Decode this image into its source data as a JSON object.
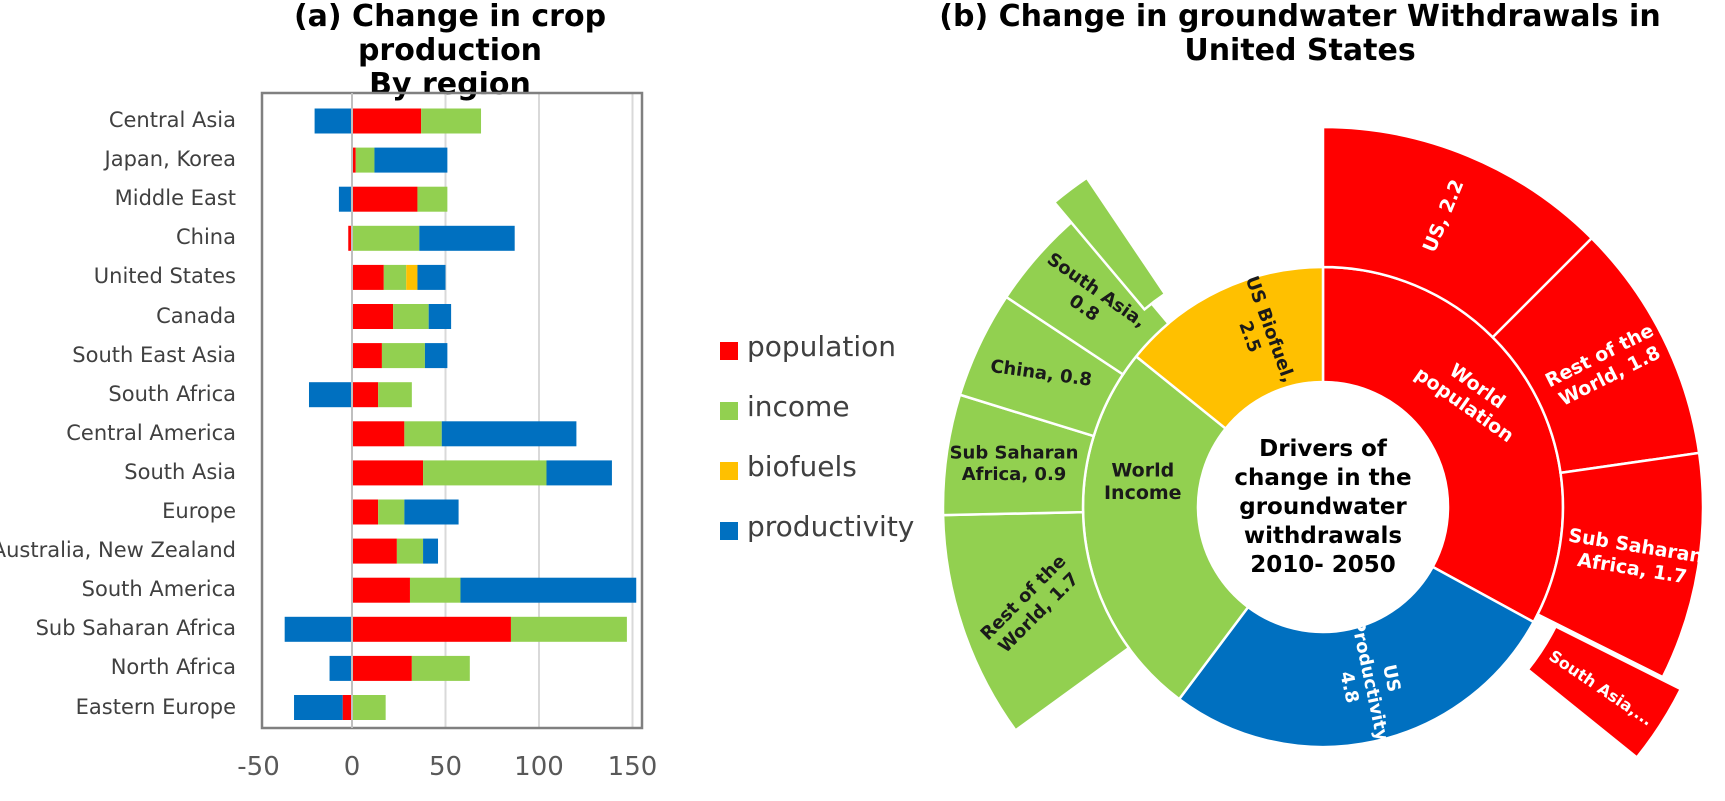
{
  "chart_data": [
    {
      "type": "bar",
      "orientation": "horizontal",
      "stacked": true,
      "title": "(a) Change in crop production",
      "subtitle": "By region",
      "categories": [
        "Central Asia",
        "Japan, Korea",
        "Middle East",
        "China",
        "United States",
        "Canada",
        "South East Asia",
        "South Africa",
        "Central America",
        "South Asia",
        "Europe",
        "Australia, New Zealand",
        "South America",
        "Sub Saharan Africa",
        "North Africa",
        "Eastern Europe"
      ],
      "series": [
        {
          "name": "population",
          "color": "#ff0000",
          "values": [
            37,
            2,
            35,
            -2,
            17,
            22,
            16,
            14,
            28,
            38,
            14,
            24,
            31,
            85,
            32,
            -5
          ]
        },
        {
          "name": "income",
          "color": "#92d050",
          "values": [
            32,
            10,
            16,
            36,
            12,
            19,
            23,
            18,
            20,
            66,
            14,
            14,
            27,
            62,
            31,
            18
          ]
        },
        {
          "name": "biofuels",
          "color": "#ffc000",
          "values": [
            0,
            0,
            0,
            0,
            6,
            0,
            0,
            0,
            0,
            0,
            0,
            0,
            0,
            0,
            0,
            0
          ]
        },
        {
          "name": "productivity",
          "color": "#0070c0",
          "values": [
            -20,
            39,
            -7,
            51,
            15,
            12,
            12,
            -23,
            72,
            35,
            29,
            8,
            94,
            -36,
            -12,
            -26
          ]
        }
      ],
      "x_ticks": [
        "-50",
        "0",
        "50",
        "100",
        "150"
      ],
      "xlim": [
        -50,
        155
      ],
      "legend_position": "right"
    },
    {
      "type": "sunburst",
      "title": "(b) Change in groundwater Withdrawals in",
      "subtitle": "United States",
      "center_label": [
        "Drivers of",
        "change in the",
        "groundwater",
        "withdrawals",
        "2010- 2050"
      ],
      "inner": [
        {
          "name": "World population",
          "label": [
            "World",
            "population"
          ],
          "value": 5.8,
          "color": "#ff0000"
        },
        {
          "name": "US Productivity",
          "label": [
            "US",
            "Productivity,",
            "4.8"
          ],
          "value": 4.8,
          "color": "#0070c0"
        },
        {
          "name": "World Income",
          "label": [
            "World",
            "Income"
          ],
          "value": 4.5,
          "color": "#92d050"
        },
        {
          "name": "US Biofuel",
          "label": [
            "US Biofuel,",
            "2.5"
          ],
          "value": 2.5,
          "color": "#ffc000"
        }
      ],
      "outer": [
        {
          "parent": "World population",
          "label": [
            "US, 2.2"
          ],
          "value": 2.2
        },
        {
          "parent": "World population",
          "label": [
            "Rest of the",
            "World, 1.8"
          ],
          "value": 1.8
        },
        {
          "parent": "World population",
          "label": [
            "Sub Saharan",
            "Africa, 1.7"
          ],
          "value": 1.7
        },
        {
          "parent": "World population",
          "label": [
            "South Asia,..."
          ],
          "value": 0.6
        },
        {
          "parent": "World Income",
          "label": [
            "Rest of the",
            "World, 1.7"
          ],
          "value": 1.7
        },
        {
          "parent": "World Income",
          "label": [
            "Sub Saharan",
            "Africa, 0.9"
          ],
          "value": 0.9
        },
        {
          "parent": "World Income",
          "label": [
            "China, 0.8"
          ],
          "value": 0.8
        },
        {
          "parent": "World Income",
          "label": [
            "South Asia,",
            "0.8"
          ],
          "value": 0.8
        },
        {
          "parent": "World Income",
          "label": [],
          "value": 0.3
        }
      ]
    }
  ]
}
